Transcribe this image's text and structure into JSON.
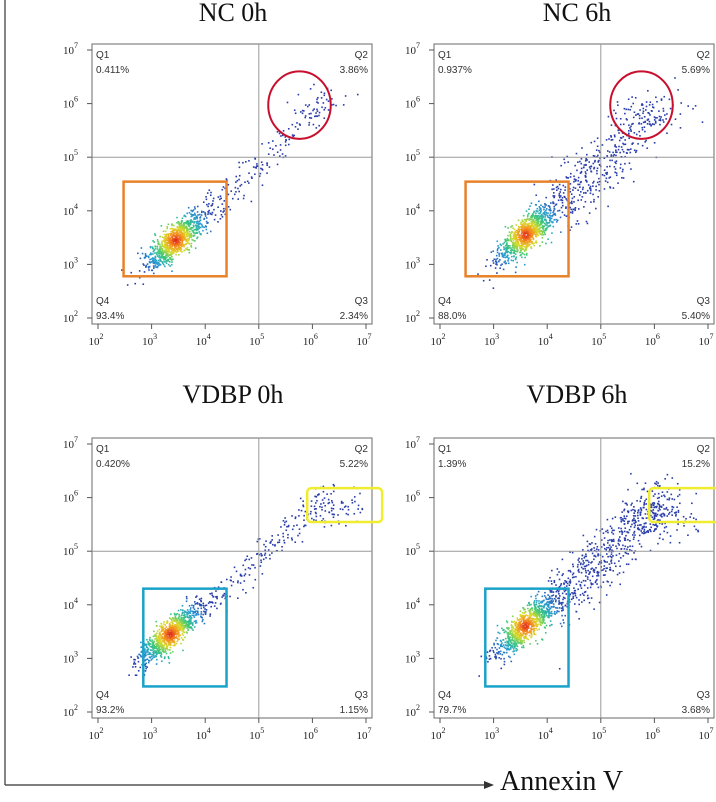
{
  "figure": {
    "x_axis_label": "Annexin V",
    "colors": {
      "orange_box": "#e8822a",
      "red_ellipse": "#c8102e",
      "cyan_box": "#1aa3c8",
      "yellow_box": "#f0ec30",
      "quad_lines": "#9a9a9a"
    }
  },
  "chart_data": [
    {
      "type": "scatter",
      "title": "NC 0h",
      "x_scale": "log",
      "y_scale": "log",
      "xlim": [
        100,
        10000000
      ],
      "ylim": [
        100,
        10000000
      ],
      "gate_x": 100000,
      "gate_y": 100000,
      "x_tick_labels": [
        "10^2",
        "10^3",
        "10^4",
        "10^5",
        "10^6",
        "10^7"
      ],
      "y_tick_labels": [
        "10^2",
        "10^3",
        "10^4",
        "10^5",
        "10^6",
        "10^7"
      ],
      "quadrants": [
        {
          "name": "Q1",
          "value": "0.411%"
        },
        {
          "name": "Q2",
          "value": "3.86%"
        },
        {
          "name": "Q3",
          "value": "2.34%"
        },
        {
          "name": "Q4",
          "value": "93.4%"
        }
      ],
      "highlights": [
        {
          "shape": "rect",
          "color": "orange",
          "x": [
            300,
            25000
          ],
          "y": [
            600,
            35000
          ]
        },
        {
          "shape": "ellipse",
          "color": "red",
          "x": [
            150000,
            2200000
          ],
          "y": [
            220000,
            4000000
          ]
        }
      ]
    },
    {
      "type": "scatter",
      "title": "NC 6h",
      "x_scale": "log",
      "y_scale": "log",
      "xlim": [
        100,
        10000000
      ],
      "ylim": [
        100,
        10000000
      ],
      "gate_x": 100000,
      "gate_y": 100000,
      "x_tick_labels": [
        "10^2",
        "10^3",
        "10^4",
        "10^5",
        "10^6",
        "10^7"
      ],
      "y_tick_labels": [
        "10^2",
        "10^3",
        "10^4",
        "10^5",
        "10^6",
        "10^7"
      ],
      "quadrants": [
        {
          "name": "Q1",
          "value": "0.937%"
        },
        {
          "name": "Q2",
          "value": "5.69%"
        },
        {
          "name": "Q3",
          "value": "5.40%"
        },
        {
          "name": "Q4",
          "value": "88.0%"
        }
      ],
      "highlights": [
        {
          "shape": "rect",
          "color": "orange",
          "x": [
            300,
            25000
          ],
          "y": [
            600,
            35000
          ]
        },
        {
          "shape": "ellipse",
          "color": "red",
          "x": [
            150000,
            2200000
          ],
          "y": [
            220000,
            4000000
          ]
        }
      ]
    },
    {
      "type": "scatter",
      "title": "VDBP 0h",
      "x_scale": "log",
      "y_scale": "log",
      "xlim": [
        100,
        10000000
      ],
      "ylim": [
        100,
        10000000
      ],
      "gate_x": 100000,
      "gate_y": 100000,
      "x_tick_labels": [
        "10^2",
        "10^3",
        "10^4",
        "10^5",
        "10^6",
        "10^7"
      ],
      "y_tick_labels": [
        "10^2",
        "10^3",
        "10^4",
        "10^5",
        "10^6",
        "10^7"
      ],
      "quadrants": [
        {
          "name": "Q1",
          "value": "0.420%"
        },
        {
          "name": "Q2",
          "value": "5.22%"
        },
        {
          "name": "Q3",
          "value": "1.15%"
        },
        {
          "name": "Q4",
          "value": "93.2%"
        }
      ],
      "highlights": [
        {
          "shape": "rect",
          "color": "cyan",
          "x": [
            700,
            25000
          ],
          "y": [
            300,
            20000
          ]
        },
        {
          "shape": "rect",
          "color": "yellow",
          "x": [
            800000,
            20000000
          ],
          "y": [
            350000,
            1500000
          ]
        }
      ]
    },
    {
      "type": "scatter",
      "title": "VDBP 6h",
      "x_scale": "log",
      "y_scale": "log",
      "xlim": [
        100,
        10000000
      ],
      "ylim": [
        100,
        10000000
      ],
      "gate_x": 100000,
      "gate_y": 100000,
      "x_tick_labels": [
        "10^2",
        "10^3",
        "10^4",
        "10^5",
        "10^6",
        "10^7"
      ],
      "y_tick_labels": [
        "10^2",
        "10^3",
        "10^4",
        "10^5",
        "10^6",
        "10^7"
      ],
      "quadrants": [
        {
          "name": "Q1",
          "value": "1.39%"
        },
        {
          "name": "Q2",
          "value": "15.2%"
        },
        {
          "name": "Q3",
          "value": "3.68%"
        },
        {
          "name": "Q4",
          "value": "79.7%"
        }
      ],
      "highlights": [
        {
          "shape": "rect",
          "color": "cyan",
          "x": [
            700,
            25000
          ],
          "y": [
            300,
            20000
          ]
        },
        {
          "shape": "rect",
          "color": "yellow",
          "x": [
            800000,
            20000000
          ],
          "y": [
            350000,
            1500000
          ]
        }
      ]
    }
  ]
}
